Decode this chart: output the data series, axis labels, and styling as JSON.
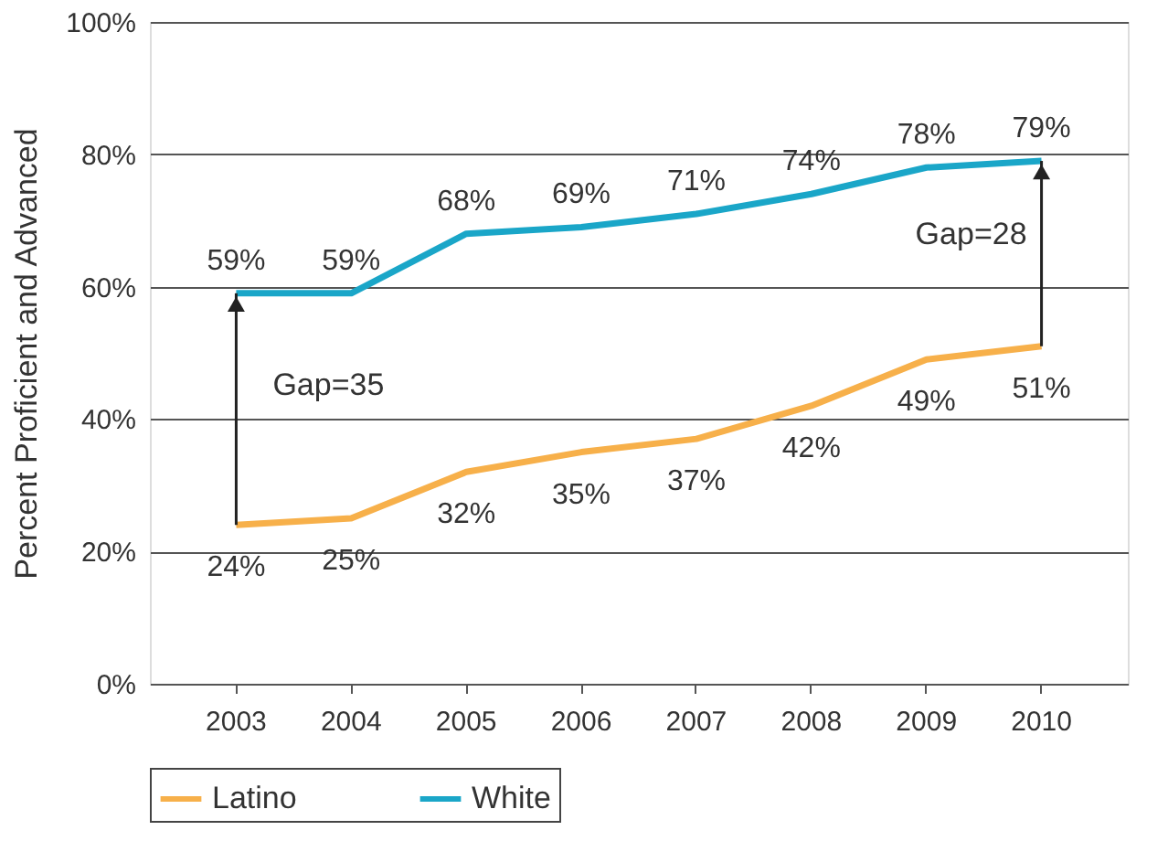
{
  "chart_data": {
    "type": "line",
    "ylabel": "Percent Proficient and Advanced",
    "categories": [
      "2003",
      "2004",
      "2005",
      "2006",
      "2007",
      "2008",
      "2009",
      "2010"
    ],
    "series": [
      {
        "name": "Latino",
        "color": "#f7b04a",
        "values": [
          24,
          25,
          32,
          35,
          37,
          42,
          49,
          51
        ],
        "value_labels": [
          "24%",
          "25%",
          "32%",
          "35%",
          "37%",
          "42%",
          "49%",
          "51%"
        ]
      },
      {
        "name": "White",
        "color": "#1aa6c8",
        "values": [
          59,
          59,
          68,
          69,
          71,
          74,
          78,
          79
        ],
        "value_labels": [
          "59%",
          "59%",
          "68%",
          "69%",
          "71%",
          "74%",
          "78%",
          "79%"
        ]
      }
    ],
    "ylim": [
      0,
      100
    ],
    "yticks": [
      {
        "value": 0,
        "label": "0%"
      },
      {
        "value": 20,
        "label": "20%"
      },
      {
        "value": 40,
        "label": "40%"
      },
      {
        "value": 60,
        "label": "60%"
      },
      {
        "value": 80,
        "label": "80%"
      },
      {
        "value": 100,
        "label": "100%"
      }
    ],
    "grid": "y",
    "legend": "bottom",
    "marker": "none",
    "line_style": "solid",
    "annotations": [
      {
        "text": "Gap=35",
        "x": "2003",
        "y": 59
      },
      {
        "text": "Gap=28",
        "x": "2010",
        "y": 79
      }
    ]
  }
}
